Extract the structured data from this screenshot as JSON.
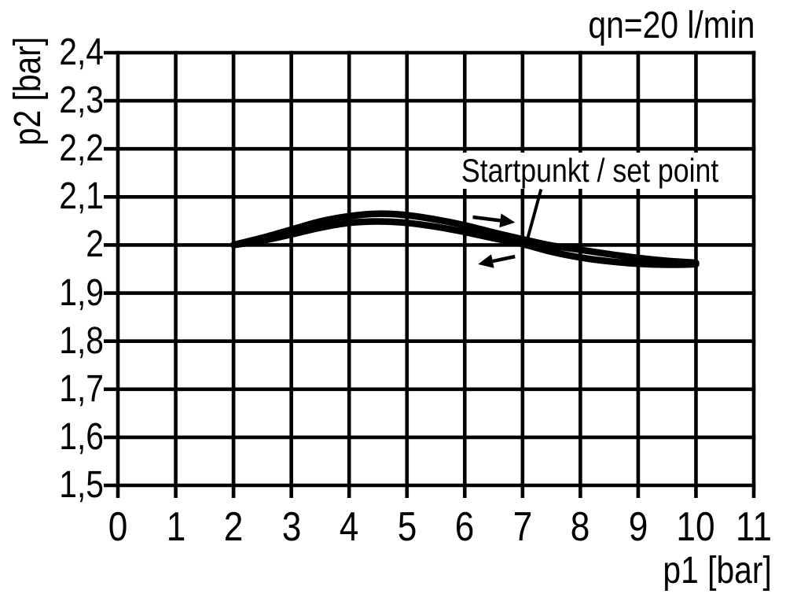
{
  "colors": {
    "ink": "#000000",
    "background": "#ffffff"
  },
  "chart_data": {
    "type": "line",
    "title": "qn=20 l/min",
    "flow_rate_note": "qn=20 l/min",
    "xlabel": "p1 [bar]",
    "ylabel": "p2 [bar]",
    "xlim": [
      0,
      11
    ],
    "ylim": [
      1.5,
      2.4
    ],
    "grid": true,
    "x_ticks": [
      0,
      1,
      2,
      3,
      4,
      5,
      6,
      7,
      8,
      9,
      10,
      11
    ],
    "x_tick_labels": [
      "0",
      "1",
      "2",
      "3",
      "4",
      "5",
      "6",
      "7",
      "8",
      "9",
      "10",
      "11"
    ],
    "y_ticks": [
      2.4,
      2.3,
      2.2,
      2.1,
      2.0,
      1.9,
      1.8,
      1.7,
      1.6,
      1.5
    ],
    "y_tick_labels": [
      "2,4",
      "2,3",
      "2,2",
      "2,1",
      "2",
      "1,9",
      "1,8",
      "1,7",
      "1,6",
      "1,5"
    ],
    "set_point": {
      "label": "Startpunkt / set point",
      "p1": 7,
      "p2": 2.0
    },
    "series": [
      {
        "name": "forward-increasing-p1",
        "direction": "right",
        "x": [
          2.0,
          2.5,
          3.0,
          3.5,
          4.0,
          4.5,
          5.0,
          5.5,
          6.0,
          6.5,
          7.0,
          7.5,
          8.0,
          8.5,
          9.0,
          9.5,
          10.0
        ],
        "y": [
          2.0,
          2.015,
          2.032,
          2.049,
          2.06,
          2.065,
          2.062,
          2.053,
          2.041,
          2.026,
          2.012,
          1.999,
          1.99,
          1.981,
          1.973,
          1.967,
          1.963
        ]
      },
      {
        "name": "return-decreasing-p1",
        "direction": "left",
        "x": [
          2.0,
          2.5,
          3.0,
          3.5,
          4.0,
          4.5,
          5.0,
          5.5,
          6.0,
          6.5,
          7.0,
          7.5,
          8.0,
          8.5,
          9.0,
          9.5,
          10.0
        ],
        "y": [
          2.0,
          2.009,
          2.022,
          2.036,
          2.046,
          2.049,
          2.046,
          2.038,
          2.027,
          2.014,
          2.002,
          1.986,
          1.974,
          1.966,
          1.961,
          1.959,
          1.96
        ]
      }
    ],
    "direction_arrows": [
      {
        "direction": "right",
        "from": [
          6.14,
          2.058
        ],
        "to": [
          6.87,
          2.047
        ]
      },
      {
        "direction": "left",
        "from": [
          6.87,
          1.976
        ],
        "to": [
          6.23,
          1.96
        ]
      }
    ],
    "leader_line": {
      "from": [
        7.32,
        2.116
      ],
      "to": [
        7.08,
        2.01
      ]
    }
  }
}
